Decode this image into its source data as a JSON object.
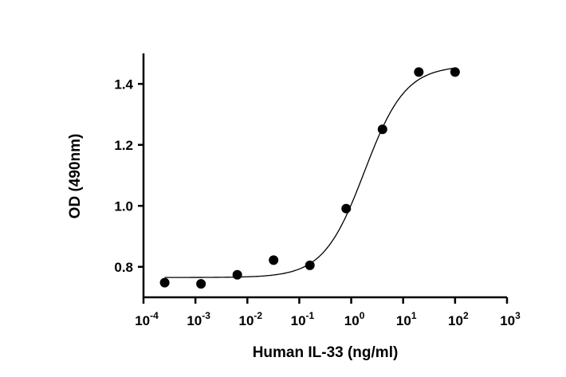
{
  "chart_data": {
    "type": "scatter",
    "title": "",
    "xlabel": "Human IL-33 (ng/ml)",
    "ylabel": "OD (490nm)",
    "xscale": "log",
    "xlim": [
      0.0001,
      1000
    ],
    "ylim": [
      0.7,
      1.5
    ],
    "xticks": [
      {
        "base": "10",
        "exp": "-4",
        "value": 0.0001
      },
      {
        "base": "10",
        "exp": "-3",
        "value": 0.001
      },
      {
        "base": "10",
        "exp": "-2",
        "value": 0.01
      },
      {
        "base": "10",
        "exp": "-1",
        "value": 0.1
      },
      {
        "base": "10",
        "exp": "0",
        "value": 1
      },
      {
        "base": "10",
        "exp": "1",
        "value": 10
      },
      {
        "base": "10",
        "exp": "2",
        "value": 100
      },
      {
        "base": "10",
        "exp": "3",
        "value": 1000
      }
    ],
    "yticks": [
      {
        "label": "0.8",
        "value": 0.8
      },
      {
        "label": "1.0",
        "value": 1.0
      },
      {
        "label": "1.2",
        "value": 1.2
      },
      {
        "label": "1.4",
        "value": 1.4
      }
    ],
    "grid": false,
    "points": {
      "x": [
        0.000256,
        0.00128,
        0.0064,
        0.032,
        0.16,
        0.8,
        4,
        20,
        100
      ],
      "y": [
        0.748,
        0.744,
        0.774,
        0.822,
        0.805,
        0.991,
        1.251,
        1.439,
        1.439
      ]
    },
    "fit": {
      "model": "4PL",
      "bottom": 0.765,
      "top": 1.46,
      "ec50": 1.8,
      "hill": 1.1,
      "x_range": [
        0.000256,
        100
      ]
    },
    "colors": {
      "points": "#000000",
      "line": "#000000"
    }
  }
}
